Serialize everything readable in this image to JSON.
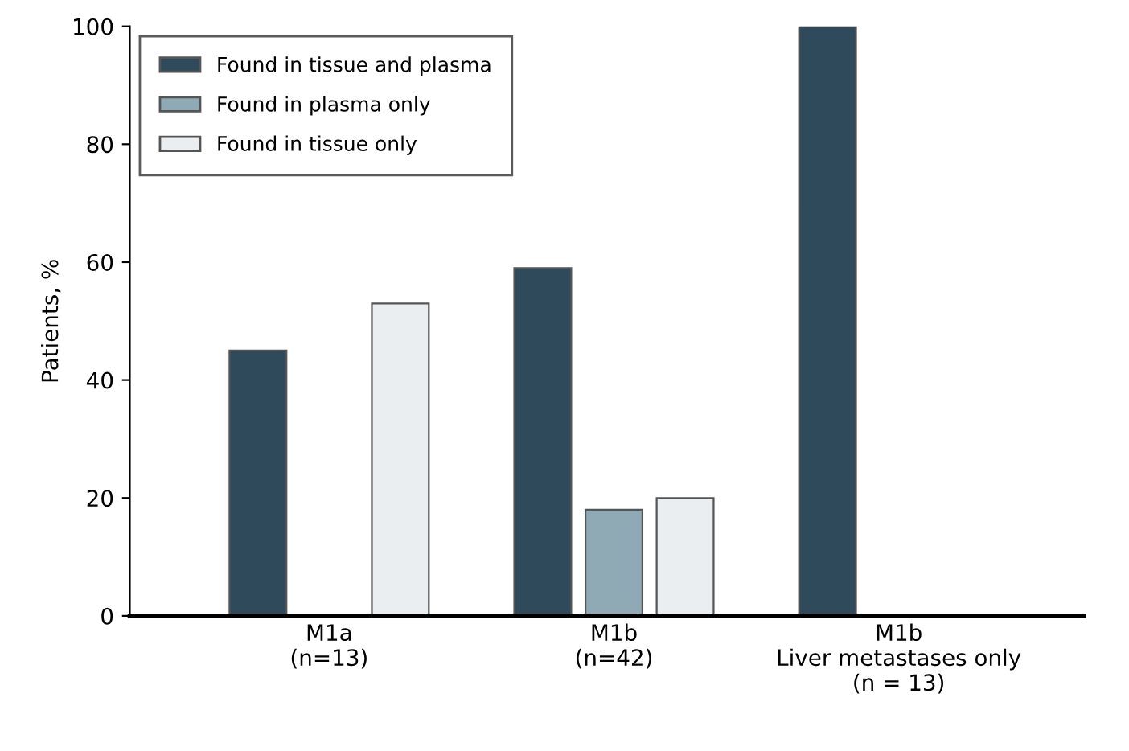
{
  "chart_data": {
    "type": "bar",
    "ylabel": "Patients, %",
    "categories": [
      "M1a\n(n=13)",
      "M1b\n(n=42)",
      "M1b\nLiver metastases only\n(n = 13)"
    ],
    "series": [
      {
        "name": "Found in tissue and plasma",
        "color": "#2f4b5b",
        "values": [
          45,
          59,
          100
        ]
      },
      {
        "name": "Found in plasma only",
        "color": "#8fa9b5",
        "values": [
          null,
          18,
          null
        ]
      },
      {
        "name": "Found in tissue only",
        "color": "#eaeef1",
        "values": [
          53,
          20,
          null
        ]
      }
    ],
    "ylim": [
      0,
      100
    ],
    "yticks": [
      0,
      20,
      40,
      60,
      80,
      100
    ],
    "legend": "top left",
    "grid": false
  }
}
